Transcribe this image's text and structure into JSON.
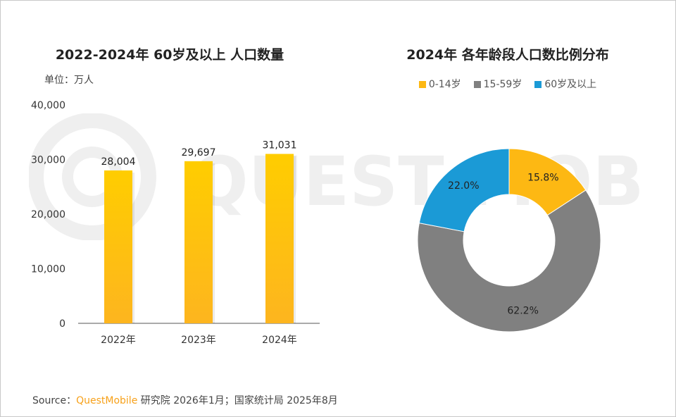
{
  "watermark": "QUEST MOBILE",
  "source": {
    "prefix": "Source：",
    "brand": "QuestMobile",
    "rest": " 研究院 2026年1月；国家统计局 2025年8月"
  },
  "chart_data": [
    {
      "type": "bar",
      "title": "2022-2024年 60岁及以上 人口数量",
      "unit_label": "单位：万人",
      "categories": [
        "2022年",
        "2023年",
        "2024年"
      ],
      "values": [
        28004,
        29697,
        31031
      ],
      "data_labels": [
        "28,004",
        "29,697",
        "31,031"
      ],
      "ylim": [
        0,
        40000
      ],
      "yticks": [
        "0",
        "10,000",
        "20,000",
        "30,000",
        "40,000"
      ],
      "grid": false,
      "colors": {
        "top": "#ffcd00",
        "bottom": "#fdb51f"
      }
    },
    {
      "type": "pie",
      "subtype": "donut",
      "title": "2024年 各年龄段人口数比例分布",
      "legend_position": "top",
      "slices": [
        {
          "name": "0-14岁",
          "value": 15.8,
          "label": "15.8%",
          "color": "#fdb813"
        },
        {
          "name": "15-59岁",
          "value": 62.2,
          "label": "62.2%",
          "color": "#808080"
        },
        {
          "name": "60岁及以上",
          "value": 22.0,
          "label": "22.0%",
          "color": "#1b9ad6"
        }
      ]
    }
  ]
}
